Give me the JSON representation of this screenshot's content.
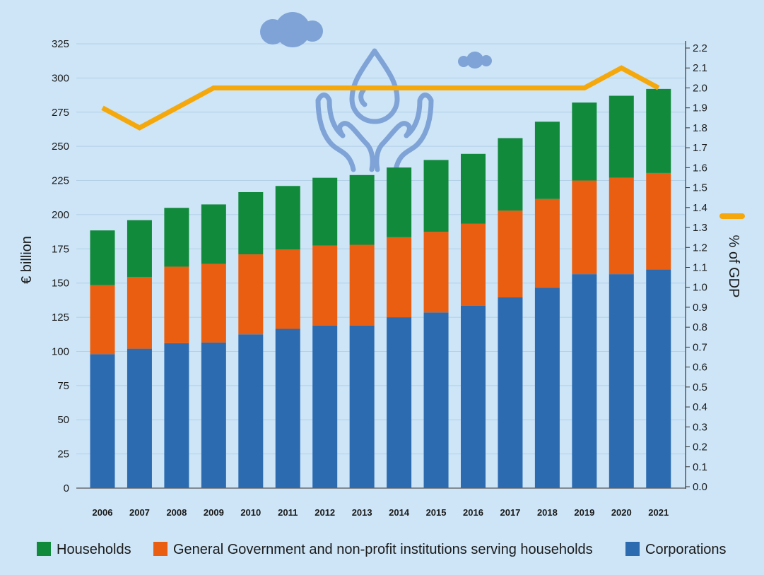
{
  "colors": {
    "background": "#cde5f7",
    "households": "#118a3b",
    "government": "#e95e10",
    "corporations": "#2d6bb1",
    "gdp_line": "#f5a80c",
    "illustration": "#7fa3d6"
  },
  "illustration": {
    "icon_names": [
      "cloud-large-icon",
      "cloud-small-icon",
      "water-drop-hands-icon"
    ]
  },
  "chart_data": {
    "type": "bar",
    "stacked": true,
    "categories": [
      "2006",
      "2007",
      "2008",
      "2009",
      "2010",
      "2011",
      "2012",
      "2013",
      "2014",
      "2015",
      "2016",
      "2017",
      "2018",
      "2019",
      "2020",
      "2021"
    ],
    "series": [
      {
        "name": "Corporations",
        "color": "#2d6bb1",
        "values": [
          98,
          102,
          106,
          106.5,
          112.5,
          116.5,
          119,
          119,
          125,
          128.5,
          133.5,
          139.5,
          146.5,
          156.5,
          156.5,
          160
        ]
      },
      {
        "name": "General Government and non-profit institutions serving households",
        "color": "#e95e10",
        "values": [
          50.5,
          52.5,
          56,
          57.5,
          58.5,
          58,
          58.5,
          59,
          58.5,
          59,
          60,
          63.5,
          65,
          68.5,
          70.5,
          70.5
        ]
      },
      {
        "name": "Households",
        "color": "#118a3b",
        "values": [
          40,
          41.5,
          43,
          43.5,
          45.5,
          46.5,
          49.5,
          51,
          51,
          52.5,
          51,
          53,
          56.5,
          57,
          60,
          61.5
        ]
      }
    ],
    "line_series": {
      "name": "% of GDP",
      "axis": "right",
      "color": "#f5a80c",
      "values": [
        1.9,
        1.8,
        1.9,
        2.0,
        2.0,
        2.0,
        2.0,
        2.0,
        2.0,
        2.0,
        2.0,
        2.0,
        2.0,
        2.0,
        2.1,
        2.0
      ]
    },
    "ylabel": "€ billion",
    "ylim": [
      0,
      325
    ],
    "yticks": [
      "0",
      "25",
      "50",
      "75",
      "100",
      "125",
      "150",
      "175",
      "200",
      "225",
      "250",
      "275",
      "300",
      "325"
    ],
    "y2label": "% of GDP",
    "y2lim": [
      0,
      2.2
    ],
    "y2ticks": [
      "0.0",
      "0.1",
      "0.2",
      "0.3",
      "0.4",
      "0.5",
      "0.6",
      "0.7",
      "0.8",
      "0.9",
      "1.0",
      "1.1",
      "1.2",
      "1.3",
      "1.4",
      "1.5",
      "1.6",
      "1.7",
      "1.8",
      "1.9",
      "2.0",
      "2.1",
      "2.2"
    ],
    "grid": true,
    "legend": {
      "position": "bottom",
      "items": [
        "Households",
        "General Government and non-profit institutions serving households",
        "Corporations"
      ]
    }
  }
}
